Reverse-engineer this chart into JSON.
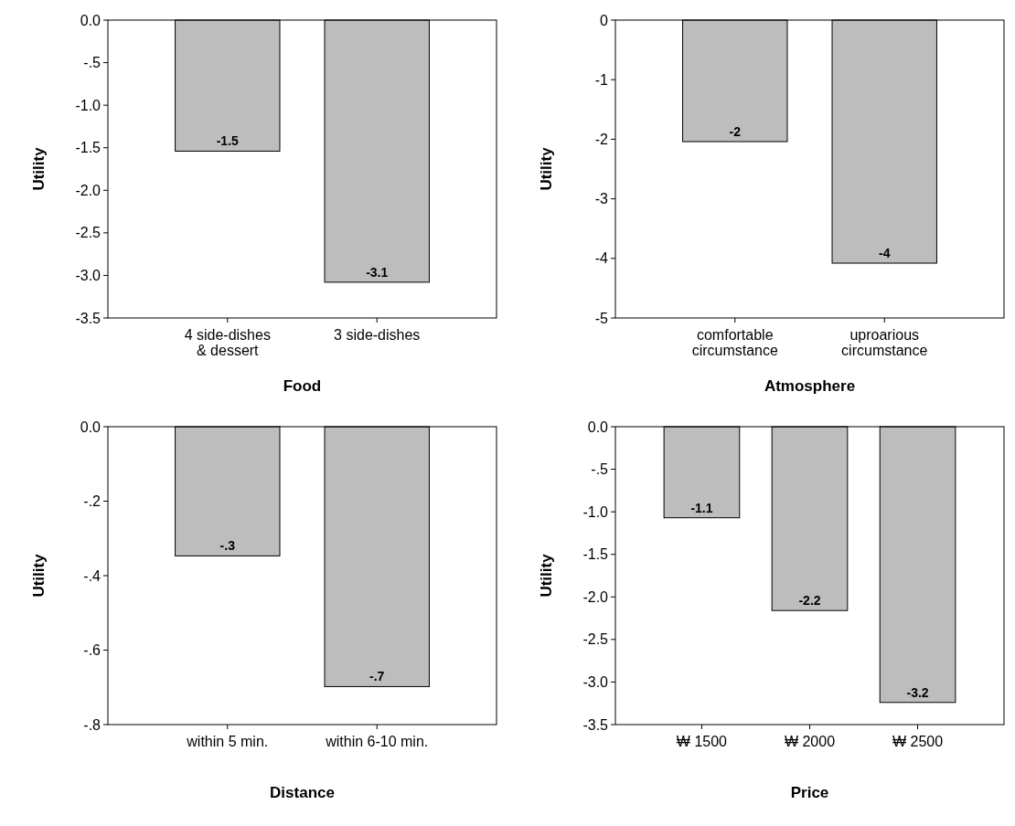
{
  "chart_data": [
    {
      "type": "bar",
      "xlabel": "Food",
      "ylabel": "Utility",
      "categories": [
        "4  side-dishes\n& dessert",
        "3  side-dishes"
      ],
      "values": [
        -1.54,
        -3.08
      ],
      "value_labels": [
        "-1.5",
        "-3.1"
      ],
      "color": "#bdbdbd",
      "ylim": [
        -3.5,
        0
      ],
      "yticks": [
        {
          "value": 0,
          "label": "0.0"
        },
        {
          "value": -0.5,
          "label": "-.5"
        },
        {
          "value": -1,
          "label": "-1.0"
        },
        {
          "value": -1.5,
          "label": "-1.5"
        },
        {
          "value": -2,
          "label": "-2.0"
        },
        {
          "value": -2.5,
          "label": "-2.5"
        },
        {
          "value": -3,
          "label": "-3.0"
        },
        {
          "value": -3.5,
          "label": "-3.5"
        }
      ]
    },
    {
      "type": "bar",
      "xlabel": "Atmosphere",
      "ylabel": "Utility",
      "categories": [
        "comfortable\ncircumstance",
        "uproarious\ncircumstance"
      ],
      "values": [
        -2.04,
        -4.08
      ],
      "value_labels": [
        "-2",
        "-4"
      ],
      "color": "#bdbdbd",
      "ylim": [
        -5,
        0
      ],
      "yticks": [
        0,
        -1,
        -2,
        -3,
        -4,
        -5
      ]
    },
    {
      "type": "bar",
      "xlabel": "Distance",
      "ylabel": "Utility",
      "categories": [
        "within 5 min.",
        "within 6-10 min."
      ],
      "values": [
        -0.347,
        -0.698
      ],
      "value_labels": [
        "-.3",
        "-.7"
      ],
      "color": "#bdbdbd",
      "ylim": [
        -0.8,
        0
      ],
      "yticks": [
        {
          "value": 0,
          "label": "0.0"
        },
        {
          "value": -0.2,
          "label": "-.2"
        },
        {
          "value": -0.4,
          "label": "-.4"
        },
        {
          "value": -0.6,
          "label": "-.6"
        },
        {
          "value": -0.8,
          "label": "-.8"
        }
      ]
    },
    {
      "type": "bar",
      "xlabel": "Price",
      "ylabel": "Utility",
      "categories": [
        "₩ 1500",
        "₩ 2000",
        "₩ 2500"
      ],
      "values": [
        -1.07,
        -2.16,
        -3.24
      ],
      "value_labels": [
        "-1.1",
        "-2.2",
        "-3.2"
      ],
      "color": "#bdbdbd",
      "ylim": [
        -3.5,
        0
      ],
      "yticks": [
        {
          "value": 0,
          "label": "0.0"
        },
        {
          "value": -0.5,
          "label": "-.5"
        },
        {
          "value": -1,
          "label": "-1.0"
        },
        {
          "value": -1.5,
          "label": "-1.5"
        },
        {
          "value": -2,
          "label": "-2.0"
        },
        {
          "value": -2.5,
          "label": "-2.5"
        },
        {
          "value": -3,
          "label": "-3.0"
        },
        {
          "value": -3.5,
          "label": "-3.5"
        }
      ]
    }
  ]
}
